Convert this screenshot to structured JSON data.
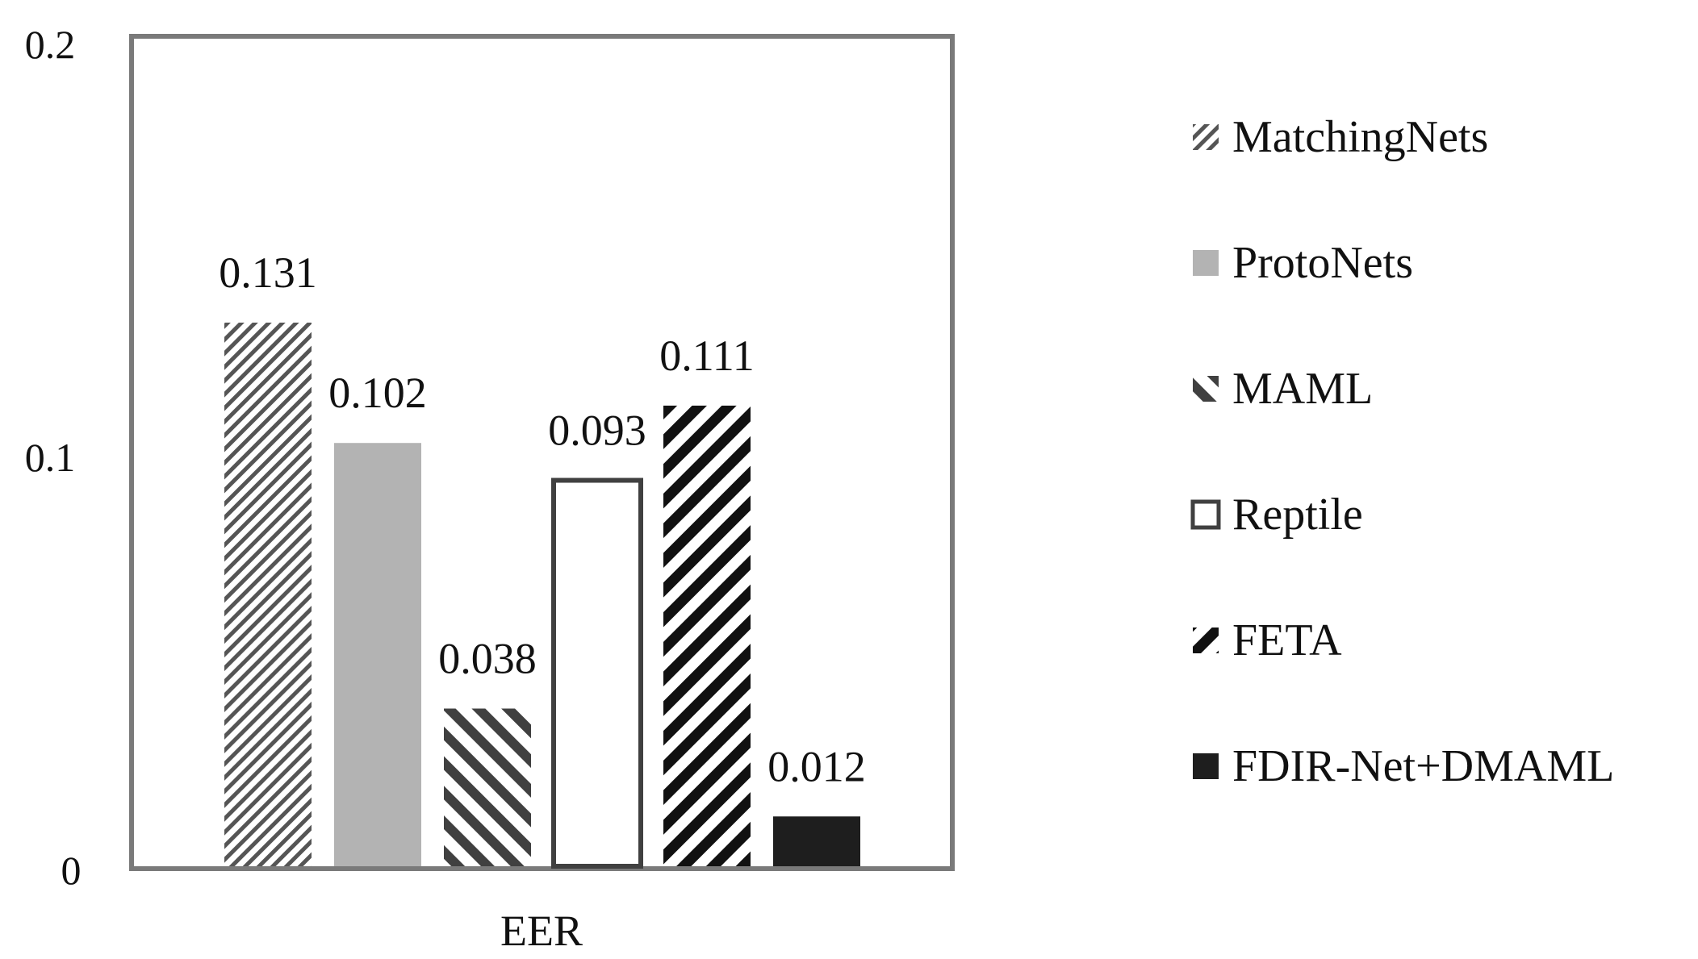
{
  "chart_data": {
    "type": "bar",
    "categories": [
      "EER"
    ],
    "xlabel": "EER",
    "ylim": [
      0,
      0.2
    ],
    "yticks": [
      "0",
      "0.1",
      "0.2"
    ],
    "grid": false,
    "legend_position": "right",
    "series": [
      {
        "name": "MatchingNets",
        "value": 0.131,
        "label": "0.131",
        "pattern": "fine-diagonal",
        "color": "#555555"
      },
      {
        "name": "ProtoNets",
        "value": 0.102,
        "label": "0.102",
        "pattern": "solid",
        "color": "#b3b3b3"
      },
      {
        "name": "MAML",
        "value": 0.038,
        "label": "0.038",
        "pattern": "wide-upward-diagonal",
        "color": "#404040"
      },
      {
        "name": "Reptile",
        "value": 0.093,
        "label": "0.093",
        "pattern": "outline",
        "color": "#404040"
      },
      {
        "name": "FETA",
        "value": 0.111,
        "label": "0.111",
        "pattern": "wide-downward-diagonal",
        "color": "#111111"
      },
      {
        "name": "FDIR-Net+DMAML",
        "value": 0.012,
        "label": "0.012",
        "pattern": "solid",
        "color": "#1e1e1e"
      }
    ]
  }
}
